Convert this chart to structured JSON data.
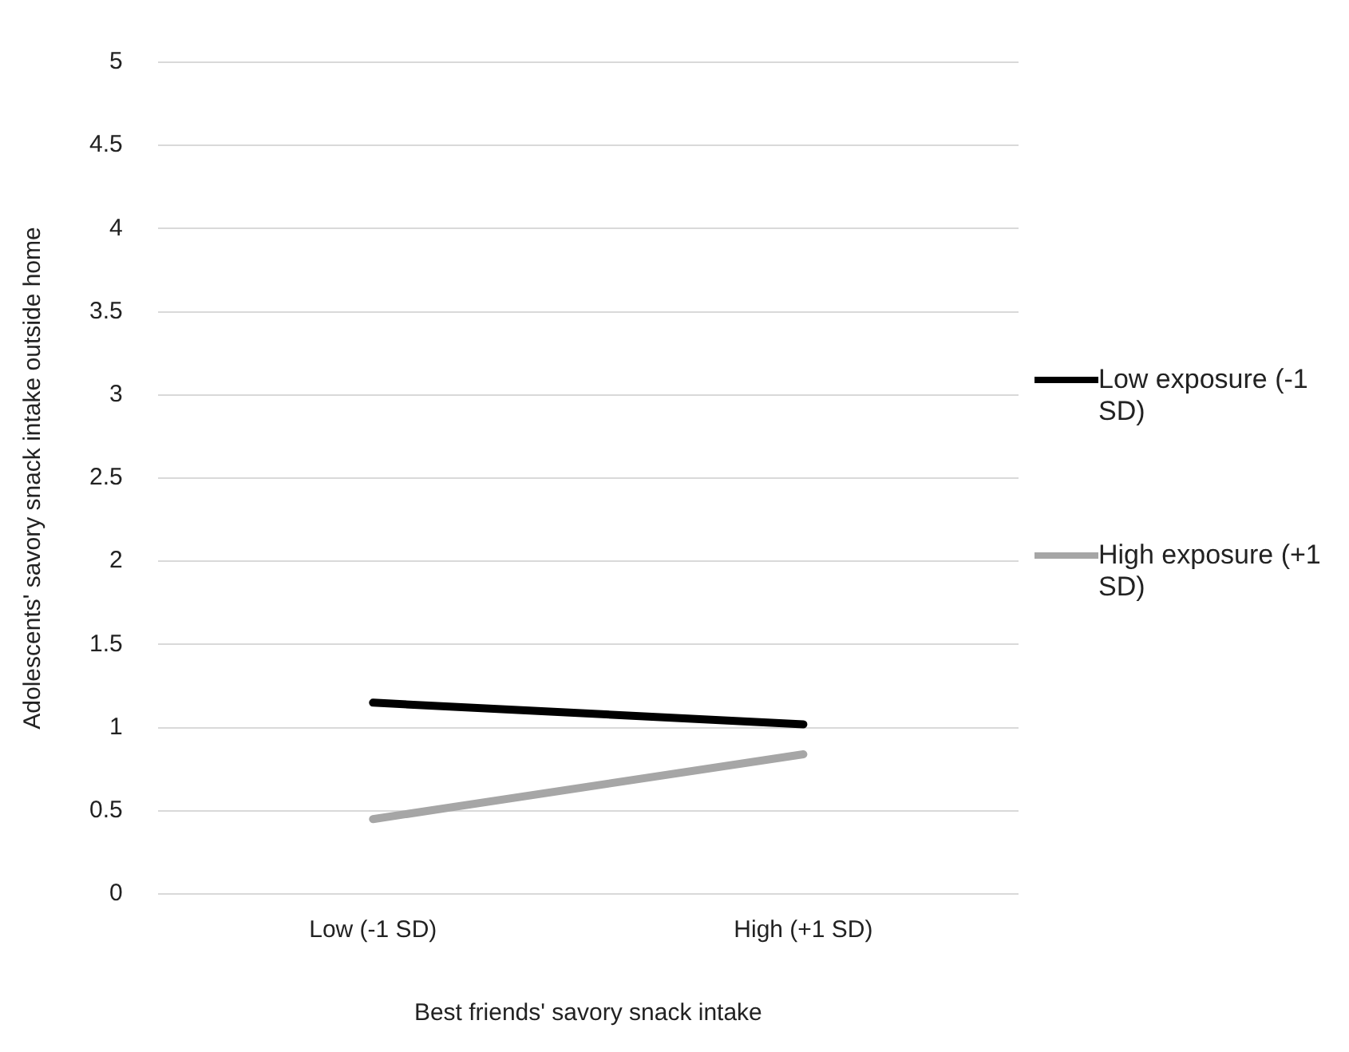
{
  "chart_data": {
    "type": "line",
    "xlabel": "Best friends' savory snack intake",
    "ylabel": "Adolescents' savory snack intake outside home",
    "categories": [
      "Low (-1 SD)",
      "High (+1 SD)"
    ],
    "series": [
      {
        "name": "Low exposure (-1 SD)",
        "color": "#000000",
        "values": [
          1.15,
          1.02
        ]
      },
      {
        "name": "High exposure (+1 SD)",
        "color": "#a6a6a6",
        "values": [
          0.45,
          0.84
        ]
      }
    ],
    "ylim": [
      0,
      5
    ],
    "yticks": [
      0,
      0.5,
      1,
      1.5,
      2,
      2.5,
      3,
      3.5,
      4,
      4.5,
      5
    ],
    "grid": "y",
    "legend": "right",
    "marker": "none"
  }
}
